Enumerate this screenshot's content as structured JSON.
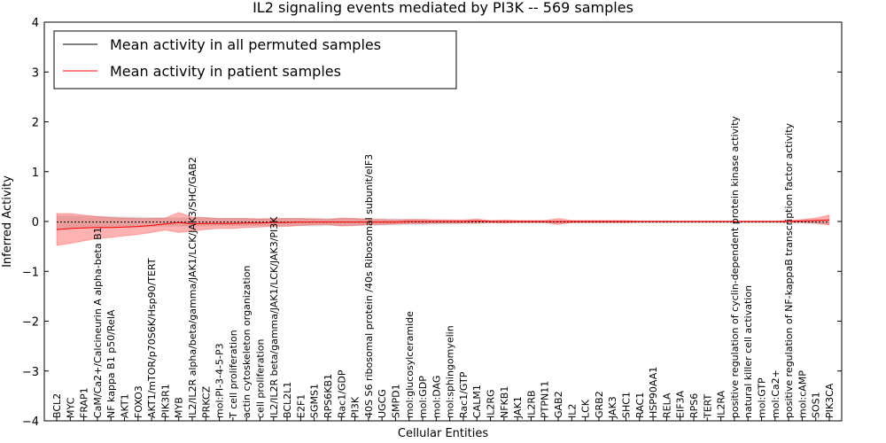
{
  "chart_data": {
    "type": "line",
    "title": "IL2 signaling events mediated by PI3K -- 569 samples",
    "xlabel": "Cellular Entities",
    "ylabel": "Inferred Activity",
    "ylim": [
      -4,
      4
    ],
    "yticks": [
      "−4",
      "−3",
      "−2",
      "−1",
      "0",
      "1",
      "2",
      "3",
      "4"
    ],
    "grid": false,
    "legend_position": "top-left",
    "categories": [
      "BCL2",
      "MYC",
      "FRAP1",
      "CaM/Ca2+/Calcineurin A alpha-beta B1",
      "NF kappa B1 p50/RelA",
      "AKT1",
      "FOXO3",
      "AKT1/mTOR/p70S6K/Hsp90/TERT",
      "PIK3R1",
      "MYB",
      "IL2/IL2R alpha/beta/gamma/JAK1/LCK/JAK3/SHC/GAB2",
      "PRKCZ",
      "mol:PI-3-4-5-P3",
      "T cell proliferation",
      "actin cytoskeleton organization",
      "cell proliferation",
      "IL2/IL2R beta/gamma/JAK1/LCK/JAK3/PI3K",
      "BCL2L1",
      "E2F1",
      "SGMS1",
      "RPS6KB1",
      "Rac1/GDP",
      "PI3K",
      "40S S6 ribosomal protein /40s Ribosomal subunit/eIF3",
      "UGCG",
      "SMPD1",
      "mol:glucosylceramide",
      "mol:GDP",
      "mol:DAG",
      "mol:sphingomyelin",
      "Rac1/GTP",
      "CALM1",
      "IL2RG",
      "NFKB1",
      "JAK1",
      "IL2RB",
      "PTPN11",
      "GAB2",
      "IL2",
      "LCK",
      "GRB2",
      "JAK3",
      "SHC1",
      "RAC1",
      "HSP90AA1",
      "RELA",
      "EIF3A",
      "RPS6",
      "TERT",
      "IL2RA",
      "positive regulation of cyclin-dependent protein kinase activity",
      "natural killer cell activation",
      "mol:GTP",
      "mol:Ca2+",
      "positive regulation of NF-kappaB transcription factor activity",
      "mol:cAMP",
      "SOS1",
      "PIK3CA"
    ],
    "series": [
      {
        "name": "Mean activity in all permuted samples",
        "color": "#000000",
        "values": [
          -0.01,
          -0.01,
          -0.01,
          -0.01,
          -0.01,
          -0.01,
          -0.01,
          -0.01,
          -0.01,
          -0.01,
          -0.01,
          -0.01,
          -0.01,
          -0.01,
          -0.01,
          -0.01,
          -0.01,
          -0.01,
          -0.01,
          -0.01,
          -0.01,
          -0.01,
          -0.01,
          -0.01,
          -0.01,
          -0.01,
          -0.01,
          -0.01,
          -0.01,
          -0.01,
          -0.01,
          -0.01,
          -0.01,
          -0.01,
          -0.01,
          -0.01,
          -0.01,
          -0.01,
          -0.01,
          -0.01,
          -0.01,
          -0.01,
          -0.01,
          -0.01,
          -0.01,
          -0.01,
          -0.01,
          -0.01,
          -0.01,
          -0.01,
          -0.01,
          -0.01,
          -0.01,
          -0.01,
          -0.01,
          -0.01,
          -0.01,
          -0.01
        ],
        "band": [
          0.13,
          0.13,
          0.12,
          0.12,
          0.12,
          0.11,
          0.11,
          0.1,
          0.09,
          0.09,
          0.09,
          0.09,
          0.08,
          0.08,
          0.08,
          0.08,
          0.08,
          0.08,
          0.08,
          0.09,
          0.08,
          0.08,
          0.08,
          0.08,
          0.07,
          0.07,
          0.06,
          0.06,
          0.05,
          0.05,
          0.04,
          0.04,
          0.03,
          0.03,
          0.03,
          0.03,
          0.03,
          0.03,
          0.03,
          0.03,
          0.03,
          0.03,
          0.03,
          0.03,
          0.03,
          0.03,
          0.02,
          0.02,
          0.02,
          0.02,
          0.02,
          0.02,
          0.02,
          0.02,
          0.02,
          0.03,
          0.05,
          0.05
        ]
      },
      {
        "name": "Mean activity in patient samples",
        "color": "#ff0000",
        "values": [
          -0.16,
          -0.14,
          -0.13,
          -0.12,
          -0.12,
          -0.11,
          -0.1,
          -0.08,
          -0.05,
          -0.02,
          -0.05,
          -0.04,
          -0.04,
          -0.04,
          -0.03,
          -0.03,
          -0.02,
          -0.02,
          -0.01,
          -0.01,
          -0.01,
          -0.01,
          -0.01,
          -0.01,
          -0.01,
          -0.01,
          0.0,
          0.0,
          0.0,
          0.0,
          0.0,
          0.01,
          0.0,
          0.0,
          0.0,
          0.0,
          0.0,
          0.0,
          0.0,
          0.0,
          0.0,
          0.0,
          0.0,
          0.0,
          0.0,
          0.0,
          0.0,
          0.0,
          0.0,
          0.0,
          0.0,
          0.0,
          0.0,
          0.0,
          0.0,
          0.01,
          0.02,
          0.03
        ],
        "band": [
          0.32,
          0.3,
          0.26,
          0.22,
          0.2,
          0.18,
          0.16,
          0.14,
          0.12,
          0.2,
          0.14,
          0.12,
          0.1,
          0.1,
          0.09,
          0.08,
          0.08,
          0.08,
          0.07,
          0.06,
          0.05,
          0.08,
          0.07,
          0.05,
          0.05,
          0.04,
          0.04,
          0.04,
          0.03,
          0.03,
          0.03,
          0.04,
          0.02,
          0.03,
          0.02,
          0.02,
          0.02,
          0.06,
          0.02,
          0.02,
          0.02,
          0.02,
          0.02,
          0.01,
          0.01,
          0.01,
          0.01,
          0.01,
          0.01,
          0.01,
          0.01,
          0.01,
          0.01,
          0.01,
          0.02,
          0.03,
          0.05,
          0.1
        ]
      }
    ]
  }
}
